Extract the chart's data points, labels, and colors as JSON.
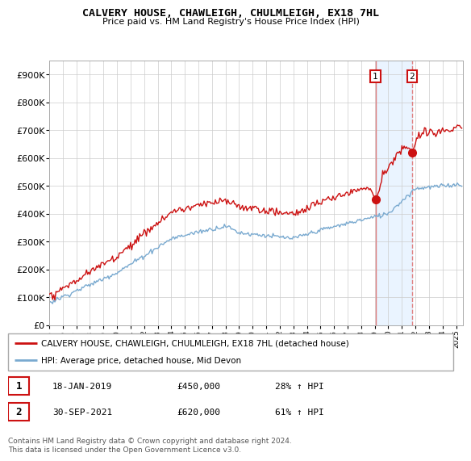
{
  "title": "CALVERY HOUSE, CHAWLEIGH, CHULMLEIGH, EX18 7HL",
  "subtitle": "Price paid vs. HM Land Registry's House Price Index (HPI)",
  "ylabel_ticks": [
    "£0",
    "£100K",
    "£200K",
    "£300K",
    "£400K",
    "£500K",
    "£600K",
    "£700K",
    "£800K",
    "£900K"
  ],
  "ytick_vals": [
    0,
    100000,
    200000,
    300000,
    400000,
    500000,
    600000,
    700000,
    800000,
    900000
  ],
  "ylim": [
    0,
    950000
  ],
  "sale1": {
    "date_num": 2019.05,
    "price": 450000,
    "label": "1",
    "date_str": "18-JAN-2019",
    "pct": "28% ↑ HPI"
  },
  "sale2": {
    "date_num": 2021.75,
    "price": 620000,
    "label": "2",
    "date_str": "30-SEP-2021",
    "pct": "61% ↑ HPI"
  },
  "hpi_color": "#7aaad0",
  "price_color": "#cc1111",
  "sale_marker_color": "#cc1111",
  "vline_color": "#e08080",
  "highlight_color": "#ddeeff",
  "legend_line1": "CALVERY HOUSE, CHAWLEIGH, CHULMLEIGH, EX18 7HL (detached house)",
  "legend_line2": "HPI: Average price, detached house, Mid Devon",
  "footer": "Contains HM Land Registry data © Crown copyright and database right 2024.\nThis data is licensed under the Open Government Licence v3.0.",
  "xlim_start": 1995.0,
  "xlim_end": 2025.5,
  "xtick_years": [
    1995,
    1996,
    1997,
    1998,
    1999,
    2000,
    2001,
    2002,
    2003,
    2004,
    2005,
    2006,
    2007,
    2008,
    2009,
    2010,
    2011,
    2012,
    2013,
    2014,
    2015,
    2016,
    2017,
    2018,
    2019,
    2020,
    2021,
    2022,
    2023,
    2024,
    2025
  ]
}
